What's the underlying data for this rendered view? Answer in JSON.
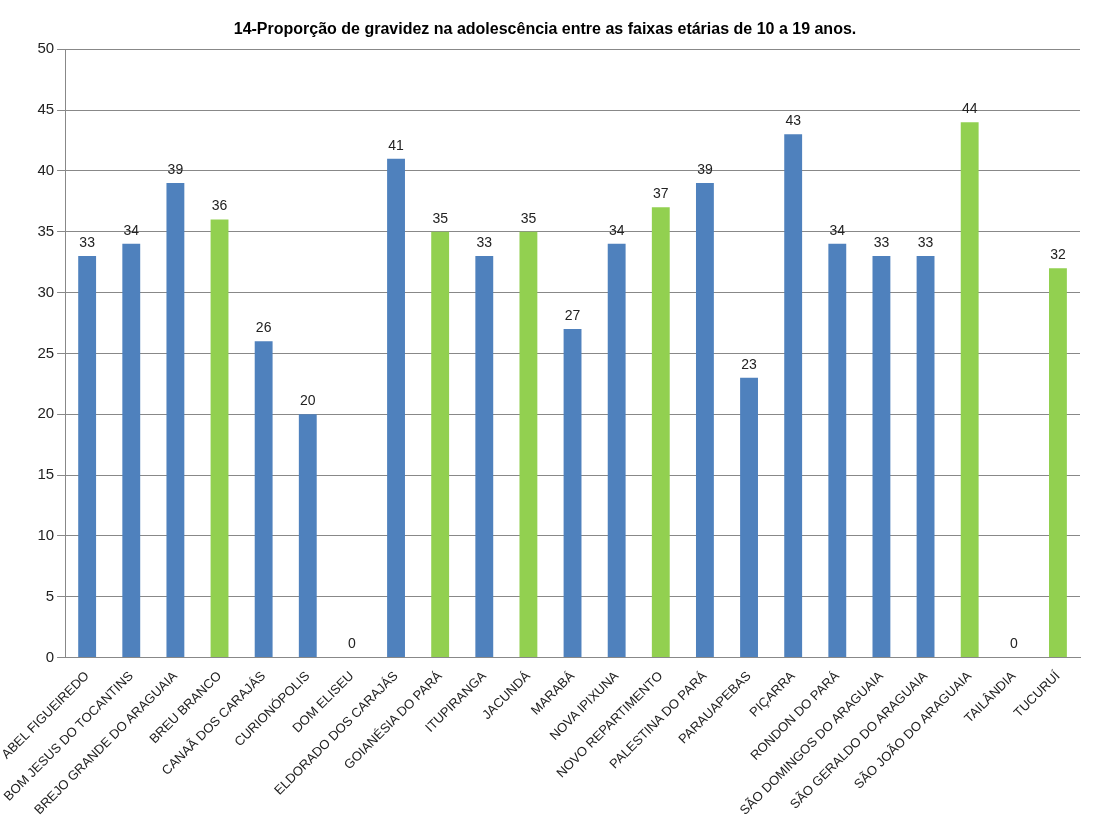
{
  "chart_data": {
    "type": "bar",
    "title": "14-Proporção de gravidez na adolescência entre as faixas etárias de 10 a 19 anos.",
    "categories": [
      "ABEL FIGUEIREDO",
      "BOM JESUS DO TOCANTINS",
      "BREJO GRANDE DO ARAGUAIA",
      "BREU BRANCO",
      "CANAÃ DOS CARAJÁS",
      "CURIONÓPOLIS",
      "DOM ELISEU",
      "ELDORADO DOS CARAJÁS",
      "GOIANÉSIA DO PARÁ",
      "ITUPIRANGA",
      "JACUNDÁ",
      "MARABÁ",
      "NOVA IPIXUNA",
      "NOVO REPARTIMENTO",
      "PALESTINA DO PARÁ",
      "PARAUAPEBAS",
      "PIÇARRA",
      "RONDON DO PARÁ",
      "SÃO DOMINGOS DO ARAGUAIA",
      "SÃO GERALDO DO ARAGUAIA",
      "SÃO JOÃO DO ARAGUAIA",
      "TAILÂNDIA",
      "TUCURUÍ"
    ],
    "values": [
      33,
      34,
      39,
      36,
      26,
      20,
      0,
      41,
      35,
      33,
      35,
      27,
      34,
      37,
      39,
      23,
      43,
      34,
      33,
      33,
      44,
      0,
      32
    ],
    "colors": [
      "#4f81bd",
      "#4f81bd",
      "#4f81bd",
      "#92d050",
      "#4f81bd",
      "#4f81bd",
      "#4f81bd",
      "#4f81bd",
      "#92d050",
      "#4f81bd",
      "#92d050",
      "#4f81bd",
      "#4f81bd",
      "#92d050",
      "#4f81bd",
      "#4f81bd",
      "#4f81bd",
      "#4f81bd",
      "#4f81bd",
      "#4f81bd",
      "#92d050",
      "#4f81bd",
      "#92d050"
    ],
    "ylim": [
      0,
      50
    ],
    "yticks": [
      0,
      5,
      10,
      15,
      20,
      25,
      30,
      35,
      40,
      45,
      50
    ],
    "grid": "y",
    "legend": false,
    "data_labels": true
  }
}
